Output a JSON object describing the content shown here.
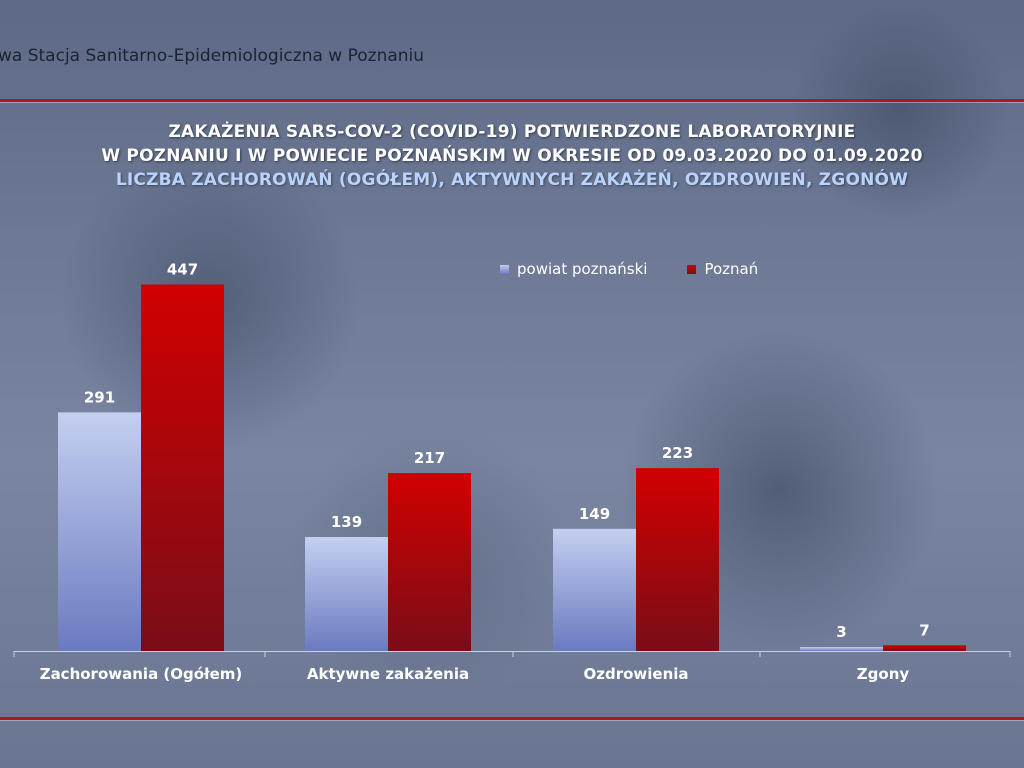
{
  "header": {
    "text": "wa Stacja Sanitarno-Epidemiologiczna w Poznaniu"
  },
  "titles": {
    "line1": "ZAKAŻENIA SARS-COV-2 (COVID-19) POTWIERDZONE LABORATORYJNIE",
    "line2": "W POZNANIU I W POWIECIE POZNAŃSKIM W OKRESIE OD 09.03.2020 DO 01.09.2020",
    "line3": "LICZBA ZACHOROWAŃ (OGÓŁEM), AKTYWNYCH ZAKAŻEŃ, OZDROWIEŃ, ZGONÓW"
  },
  "colors": {
    "rule": "#b01722",
    "powiat_top": "#c4cff0",
    "powiat_bottom": "#6a7ac0",
    "poznan_top": "#d10000",
    "poznan_bottom": "#7a0d18"
  },
  "chart_data": {
    "type": "bar",
    "categories": [
      "Zachorowania (Ogółem)",
      "Aktywne zakażenia",
      "Ozdrowienia",
      "Zgony"
    ],
    "series": [
      {
        "name": "powiat poznański",
        "values": [
          291,
          139,
          149,
          3
        ]
      },
      {
        "name": "Poznań",
        "values": [
          447,
          217,
          223,
          7
        ]
      }
    ],
    "ylim": [
      0,
      500
    ],
    "grid": false,
    "legend": "top-right"
  }
}
